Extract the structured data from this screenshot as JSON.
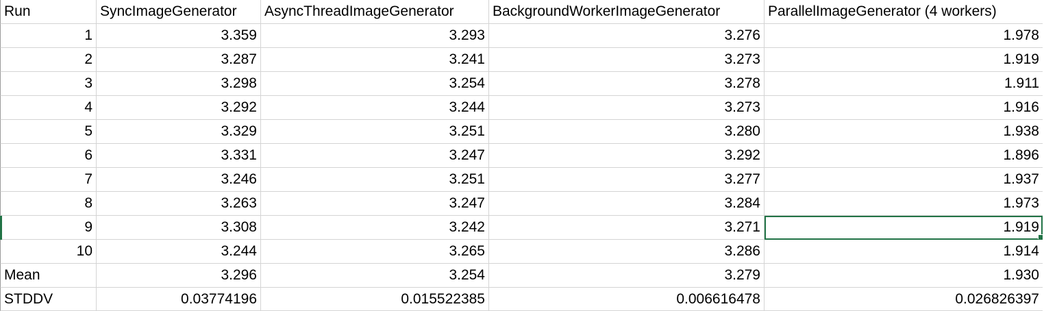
{
  "sheet": {
    "headers": [
      "Run",
      "SyncImageGenerator",
      "AsyncThreadImageGenerator",
      "BackgroundWorkerImageGenerator",
      "ParallelImageGenerator (4 workers)"
    ],
    "rows": [
      [
        "1",
        "3.359",
        "3.293",
        "3.276",
        "1.978"
      ],
      [
        "2",
        "3.287",
        "3.241",
        "3.273",
        "1.919"
      ],
      [
        "3",
        "3.298",
        "3.254",
        "3.278",
        "1.911"
      ],
      [
        "4",
        "3.292",
        "3.244",
        "3.273",
        "1.916"
      ],
      [
        "5",
        "3.329",
        "3.251",
        "3.280",
        "1.938"
      ],
      [
        "6",
        "3.331",
        "3.247",
        "3.292",
        "1.896"
      ],
      [
        "7",
        "3.246",
        "3.251",
        "3.277",
        "1.937"
      ],
      [
        "8",
        "3.263",
        "3.247",
        "3.284",
        "1.973"
      ],
      [
        "9",
        "3.308",
        "3.242",
        "3.271",
        "1.919"
      ],
      [
        "10",
        "3.244",
        "3.265",
        "3.286",
        "1.914"
      ]
    ],
    "mean": [
      "Mean",
      "3.296",
      "3.254",
      "3.279",
      "1.930"
    ],
    "stddv": [
      "STDDV",
      "0.03774196",
      "0.015522385",
      "0.006616478",
      "0.026826397"
    ],
    "selected_cell": {
      "row": 9,
      "column": 4
    },
    "selection_color": "#217346"
  }
}
